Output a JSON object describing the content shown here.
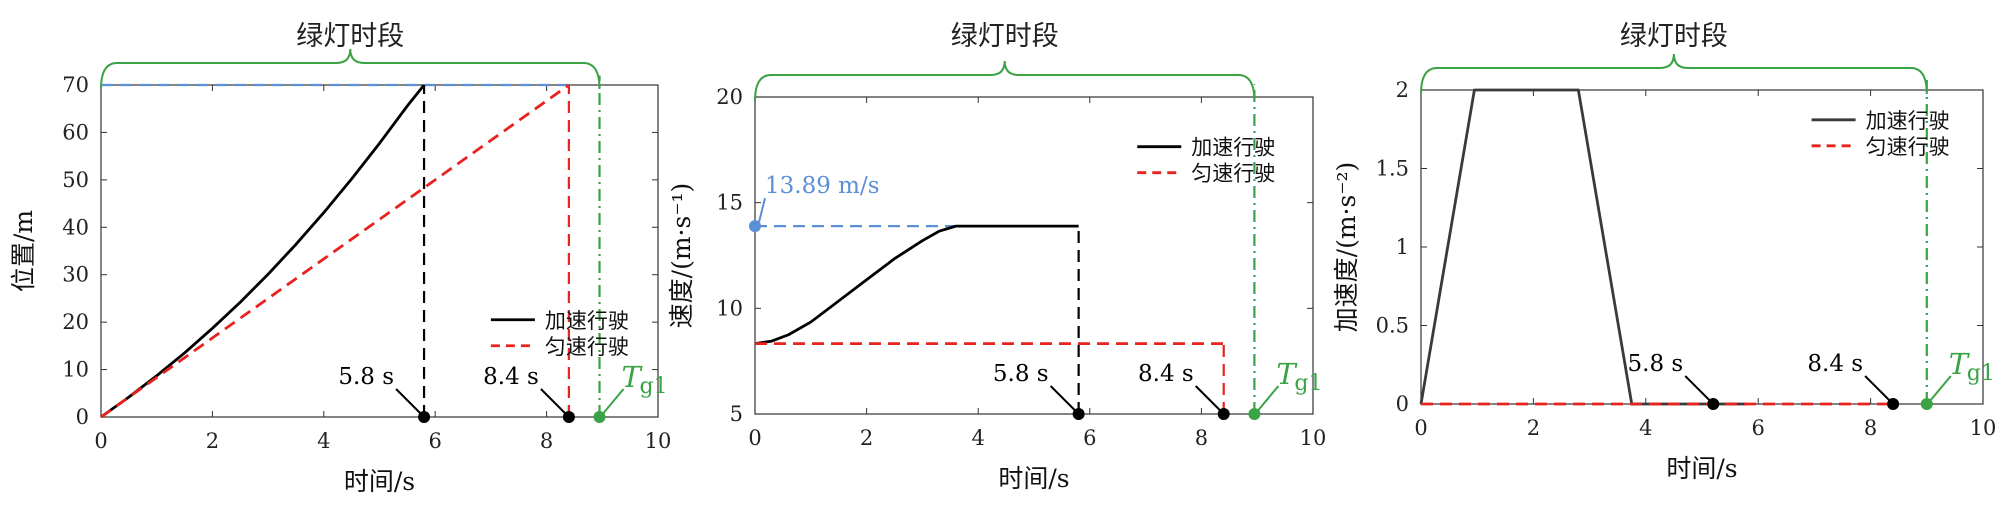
{
  "chart_data": [
    {
      "type": "line",
      "header": "绿灯时段",
      "xlabel": "时间/s",
      "ylabel": "位置/m",
      "xlim": [
        0,
        10
      ],
      "ylim": [
        0,
        70
      ],
      "xticks": [
        0,
        2,
        4,
        6,
        8,
        10
      ],
      "yticks": [
        0,
        10,
        20,
        30,
        40,
        50,
        60,
        70
      ],
      "tick_labels_x": [
        "0",
        "2",
        "4",
        "6",
        "8",
        "10"
      ],
      "tick_labels_y": [
        "0",
        "10",
        "20",
        "30",
        "40",
        "50",
        "60",
        "70"
      ],
      "legend_position": "right-middle",
      "series": [
        {
          "name": "加速行驶",
          "color": "#000000",
          "dash": "solid",
          "x": [
            0,
            0.5,
            1,
            1.5,
            2,
            2.5,
            3,
            3.5,
            4,
            4.5,
            5,
            5.5,
            5.8
          ],
          "y": [
            0,
            4.2,
            8.7,
            13.5,
            18.7,
            24.2,
            30.1,
            36.4,
            43.1,
            50.2,
            57.7,
            65.6,
            70
          ]
        },
        {
          "name": "匀速行驶",
          "color": "#e8221e",
          "dash": "dashed",
          "x": [
            0,
            8.4
          ],
          "y": [
            0,
            70
          ]
        }
      ],
      "reference_lines": [
        {
          "kind": "h",
          "value": 70,
          "x_from": 0,
          "x_to": 8.4,
          "color": "#5b8fd6"
        },
        {
          "kind": "v",
          "value": 5.8,
          "y_from": 0,
          "y_to": 70,
          "color": "#000000"
        },
        {
          "kind": "v",
          "value": 8.4,
          "y_from": 0,
          "y_to": 70,
          "color": "#e8221e"
        },
        {
          "kind": "v",
          "value": 8.95,
          "y_from": 0,
          "y_to": 72,
          "color": "#3aa346",
          "style": "dashdot"
        }
      ],
      "annotations": [
        {
          "x": 5.8,
          "y": 0,
          "label": "5.8 s",
          "color": "#000000"
        },
        {
          "x": 8.4,
          "y": 0,
          "label": "8.4 s",
          "color": "#000000"
        },
        {
          "x": 8.95,
          "y": 0,
          "label": "T",
          "sub": "g1",
          "color": "#3aa346"
        }
      ],
      "bracket": {
        "x_from": 0,
        "x_to": 8.95,
        "color": "#3aa346"
      }
    },
    {
      "type": "line",
      "header": "绿灯时段",
      "xlabel": "时间/s",
      "ylabel": "速度/(m·s⁻¹)",
      "xlim": [
        0,
        10
      ],
      "ylim": [
        5,
        20
      ],
      "xticks": [
        0,
        2,
        4,
        6,
        8,
        10
      ],
      "yticks": [
        5,
        10,
        15,
        20
      ],
      "tick_labels_x": [
        "0",
        "2",
        "4",
        "6",
        "8",
        "10"
      ],
      "tick_labels_y": [
        "5",
        "10",
        "15",
        "20"
      ],
      "legend_position": "top-right",
      "series": [
        {
          "name": "加速行驶",
          "color": "#000000",
          "dash": "solid",
          "x": [
            0,
            0.3,
            0.6,
            1,
            1.5,
            2,
            2.5,
            3,
            3.3,
            3.6,
            4,
            5,
            5.8
          ],
          "y": [
            8.33,
            8.45,
            8.75,
            9.35,
            10.35,
            11.35,
            12.35,
            13.2,
            13.65,
            13.89,
            13.89,
            13.89,
            13.89
          ]
        },
        {
          "name": "匀速行驶",
          "color": "#e8221e",
          "dash": "dashed",
          "x": [
            0,
            8.4
          ],
          "y": [
            8.33,
            8.33
          ]
        }
      ],
      "reference_lines": [
        {
          "kind": "h",
          "value": 13.89,
          "x_from": 0,
          "x_to": 3.6,
          "color": "#5b8fd6"
        },
        {
          "kind": "v",
          "value": 5.8,
          "y_from": 5,
          "y_to": 13.89,
          "color": "#000000"
        },
        {
          "kind": "v",
          "value": 8.4,
          "y_from": 5,
          "y_to": 8.33,
          "color": "#e8221e"
        },
        {
          "kind": "v",
          "value": 8.95,
          "y_from": 5,
          "y_to": 20.6,
          "color": "#3aa346",
          "style": "dashdot"
        }
      ],
      "annotations": [
        {
          "x": 0,
          "y": 13.89,
          "label": "13.89 m/s",
          "color": "#5b8fd6"
        },
        {
          "x": 5.8,
          "y": 5,
          "label": "5.8 s",
          "color": "#000000"
        },
        {
          "x": 8.4,
          "y": 5,
          "label": "8.4 s",
          "color": "#000000"
        },
        {
          "x": 8.95,
          "y": 5,
          "label": "T",
          "sub": "g1",
          "color": "#3aa346"
        }
      ],
      "bracket": {
        "x_from": 0,
        "x_to": 8.95,
        "color": "#3aa346"
      }
    },
    {
      "type": "line",
      "header": "绿灯时段",
      "xlabel": "时间/s",
      "ylabel": "加速度/(m·s⁻²)",
      "xlim": [
        0,
        10
      ],
      "ylim": [
        0,
        2
      ],
      "xticks": [
        0,
        2,
        4,
        6,
        8,
        10
      ],
      "yticks": [
        0,
        0.5,
        1,
        1.5,
        2
      ],
      "tick_labels_x": [
        "0",
        "2",
        "4",
        "6",
        "8",
        "10"
      ],
      "tick_labels_y": [
        "0",
        "0.5",
        "1",
        "1.5",
        "2"
      ],
      "legend_position": "top-right",
      "series": [
        {
          "name": "加速行驶",
          "color": "#3a3a3a",
          "dash": "solid",
          "x": [
            0,
            0.95,
            2.8,
            3.75,
            5.8
          ],
          "y": [
            0,
            2,
            2,
            0,
            0
          ]
        },
        {
          "name": "匀速行驶",
          "color": "#e8221e",
          "dash": "dashed",
          "x": [
            0,
            8.4
          ],
          "y": [
            0,
            0
          ]
        }
      ],
      "reference_lines": [
        {
          "kind": "v",
          "value": 9.0,
          "y_from": 0,
          "y_to": 2.08,
          "color": "#3aa346",
          "style": "dashdot"
        }
      ],
      "annotations": [
        {
          "x": 5.2,
          "y": 0,
          "label": "5.8 s",
          "color": "#000000"
        },
        {
          "x": 8.4,
          "y": 0,
          "label": "8.4 s",
          "color": "#000000"
        },
        {
          "x": 9.0,
          "y": 0,
          "label": "T",
          "sub": "g1",
          "color": "#3aa346"
        }
      ],
      "bracket": {
        "x_from": 0,
        "x_to": 9.0,
        "color": "#3aa346"
      }
    }
  ]
}
